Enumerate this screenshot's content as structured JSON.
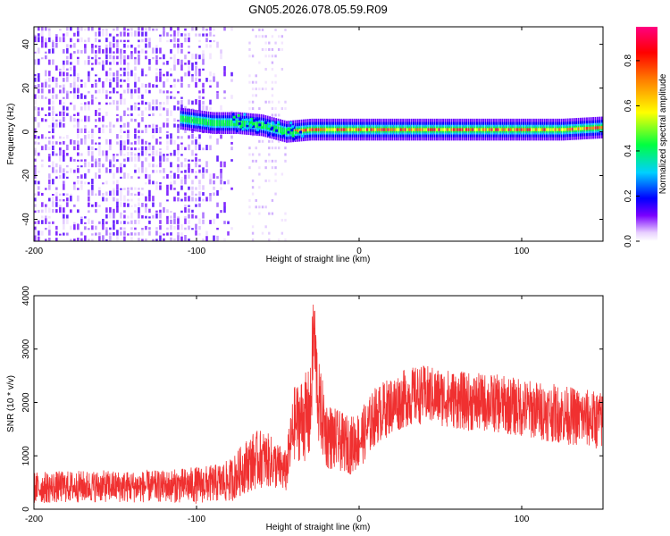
{
  "chart_data": [
    {
      "type": "heatmap",
      "title": "GN05.2026.078.05.59.R09",
      "xlabel": "Height of straight line (km)",
      "ylabel": "Frequency (Hz)",
      "xlim": [
        -200,
        150
      ],
      "ylim": [
        -50,
        48
      ],
      "xticks": [
        -200,
        -100,
        0,
        100
      ],
      "xtick_labels": [
        "-200",
        "-100",
        "0",
        "100"
      ],
      "yticks": [
        -40,
        -20,
        0,
        20,
        40
      ],
      "ytick_labels": [
        "-40",
        "-20",
        "0",
        "20",
        "40"
      ],
      "colorbar": {
        "label": "Normalized spectral amplitude",
        "range": [
          0,
          0.95
        ],
        "ticks": [
          0,
          0.2,
          0.4,
          0.6,
          0.8
        ],
        "tick_labels": [
          "0.0",
          "0.2",
          "0.4",
          "0.6",
          "0.8"
        ],
        "colors": [
          "#ffffff",
          "#e8d0ff",
          "#7a00ff",
          "#0000ff",
          "#00d0ff",
          "#00ff00",
          "#ffff00",
          "#ff8000",
          "#ff0000",
          "#ff0080"
        ]
      },
      "description_series": [
        {
          "name": "noise region",
          "x_range": [
            -200,
            -80
          ],
          "freq_range": [
            -50,
            48
          ],
          "amplitude": 0.05
        },
        {
          "name": "doppler track",
          "x": [
            -110,
            -90,
            -75,
            -60,
            -45,
            -30,
            -15,
            0,
            25,
            50,
            75,
            100,
            125,
            150
          ],
          "freq": [
            6,
            4,
            4,
            3,
            0,
            1,
            1,
            1,
            1,
            1,
            1,
            1,
            1,
            2
          ]
        }
      ]
    },
    {
      "type": "line",
      "xlabel": "Height of straight line (km)",
      "ylabel": "SNR (10 * v/v)",
      "xlim": [
        -200,
        150
      ],
      "ylim": [
        0,
        4000
      ],
      "xticks": [
        -200,
        -100,
        0,
        100
      ],
      "xtick_labels": [
        "-200",
        "-100",
        "0",
        "100"
      ],
      "yticks": [
        0,
        1000,
        2000,
        3000,
        4000
      ],
      "ytick_labels": [
        "0",
        "1000",
        "2000",
        "3000",
        "4000"
      ],
      "color": "#f03030",
      "series": [
        {
          "name": "SNR",
          "x": [
            -200,
            -180,
            -160,
            -140,
            -120,
            -100,
            -90,
            -80,
            -75,
            -70,
            -65,
            -60,
            -55,
            -50,
            -45,
            -40,
            -35,
            -30,
            -28,
            -25,
            -20,
            -15,
            -10,
            -5,
            0,
            5,
            10,
            20,
            30,
            40,
            50,
            60,
            70,
            80,
            90,
            100,
            110,
            120,
            130,
            140,
            150
          ],
          "y": [
            400,
            420,
            430,
            420,
            430,
            450,
            480,
            520,
            650,
            800,
            900,
            950,
            900,
            800,
            700,
            1600,
            1700,
            1750,
            3400,
            2000,
            1400,
            1300,
            1250,
            1200,
            1300,
            1500,
            1750,
            1950,
            2100,
            2150,
            2100,
            2050,
            2000,
            2000,
            1950,
            1900,
            1850,
            1800,
            1750,
            1700,
            1650
          ],
          "spread": [
            300,
            300,
            300,
            300,
            300,
            350,
            350,
            400,
            450,
            500,
            550,
            550,
            500,
            450,
            400,
            700,
            800,
            900,
            900,
            800,
            650,
            600,
            550,
            550,
            550,
            550,
            550,
            550,
            550,
            550,
            550,
            550,
            550,
            550,
            550,
            550,
            550,
            550,
            550,
            550,
            550
          ]
        }
      ]
    }
  ]
}
